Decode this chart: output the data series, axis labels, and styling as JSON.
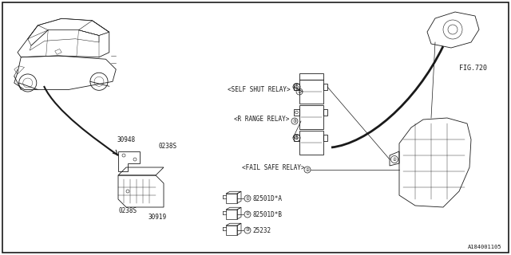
{
  "bg_color": "#ffffff",
  "border_color": "#000000",
  "fig_number": "A184001105",
  "fig_ref": "FIG.720",
  "label_self_shut": "<SELF SHUT RELAY>",
  "label_r_range": "<R RANGE RELAY>",
  "label_fail_safe": "<FAIL SAFE RELAY>",
  "label_part1": "82501D*A",
  "label_part2": "82501D*B",
  "label_part3": "25232",
  "label_30948": "30948",
  "label_0238S_top": "0238S",
  "label_0238S_bot": "0238S",
  "label_30919": "30919",
  "dark": "#1a1a1a",
  "lw": 0.6
}
